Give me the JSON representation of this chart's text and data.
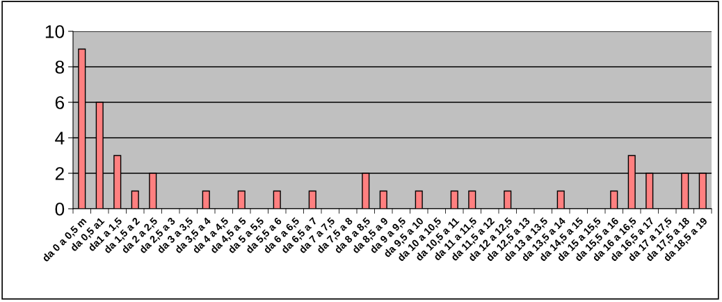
{
  "chart_data": {
    "type": "bar",
    "categories": [
      "da 0 a 0,5 m",
      "da 0,5 a1",
      "da1 a 1,5",
      "da 1,5 a 2",
      "da 2 a 2,5",
      "da 2,5 a 3",
      "da 3 a 3,5",
      "da 3,5 a 4",
      "da 4 a 4,5",
      "da 4,5 a 5",
      "da 5 a 5,5",
      "da 5,5 a 6",
      "da 6 a 6,5",
      "da 6,5 a 7",
      "da 7 a 7,5",
      "da 7,5 a 8",
      "da 8 a 8,5",
      "da 8,5 a 9",
      "da 9 a 9,5",
      "da 9,5 a 10",
      "da 10 a 10,5",
      "da 10,5 a 11",
      "da 11 a 11,5",
      "da 11,5 a 12",
      "da 12 a 12,5",
      "da 12,5 a 13",
      "da 13 a 13,5",
      "da 13,5 a 14",
      "da 14,5 a 15",
      "da 15 a 15,5",
      "da 15,5 a 16",
      "da 16 a 16,5",
      "da 16,5 a 17",
      "da 17 a 17,5",
      "da 17,5 a 18",
      "da 18,5 a 19"
    ],
    "values": [
      9,
      6,
      3,
      1,
      2,
      0,
      0,
      1,
      0,
      1,
      0,
      1,
      0,
      1,
      0,
      0,
      2,
      1,
      0,
      1,
      0,
      1,
      1,
      0,
      1,
      0,
      0,
      1,
      0,
      0,
      1,
      3,
      2,
      0,
      2,
      2
    ],
    "color": "#ff8080",
    "ylim": [
      0,
      10
    ],
    "yticks": [
      0,
      2,
      4,
      6,
      8,
      10
    ],
    "grid": "y",
    "legend": false
  }
}
